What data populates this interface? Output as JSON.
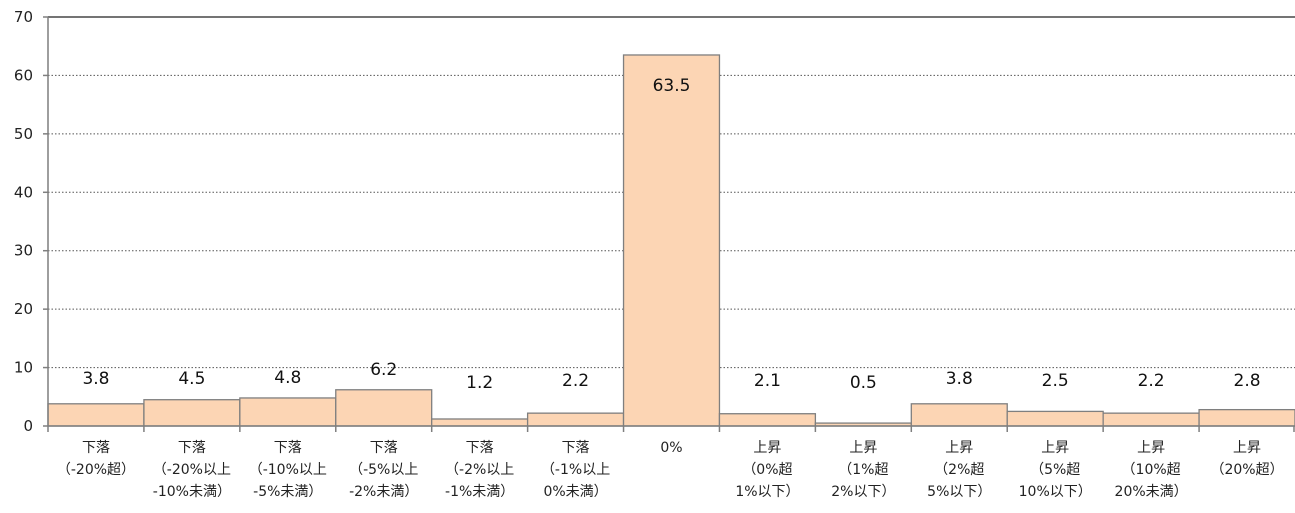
{
  "chart_data": {
    "type": "bar",
    "categories": [
      [
        "下落",
        "（-20%超）"
      ],
      [
        "下落",
        "（-20%以上",
        "-10%未満）"
      ],
      [
        "下落",
        "（-10%以上",
        "-5%未満）"
      ],
      [
        "下落",
        "（-5%以上",
        "-2%未満）"
      ],
      [
        "下落",
        "（-2%以上",
        "-1%未満）"
      ],
      [
        "下落",
        "（-1%以上",
        "0%未満）"
      ],
      [
        "0%"
      ],
      [
        "上昇",
        "（0%超",
        "1%以下）"
      ],
      [
        "上昇",
        "（1%超",
        "2%以下）"
      ],
      [
        "上昇",
        "（2%超",
        "5%以下）"
      ],
      [
        "上昇",
        "（5%超",
        "10%以下）"
      ],
      [
        "上昇",
        "（10%超",
        "20%未満）"
      ],
      [
        "上昇",
        "（20%超）"
      ]
    ],
    "values": [
      3.8,
      4.5,
      4.8,
      6.2,
      1.2,
      2.2,
      63.5,
      2.1,
      0.5,
      3.8,
      2.5,
      2.2,
      2.8
    ],
    "value_labels": [
      "3.8",
      "4.5",
      "4.8",
      "6.2",
      "1.2",
      "2.2",
      "63.5",
      "2.1",
      "0.5",
      "3.8",
      "2.5",
      "2.2",
      "2.8"
    ],
    "yticks": [
      "0",
      "10",
      "20",
      "30",
      "40",
      "50",
      "60",
      "70"
    ],
    "ylim": [
      0,
      70
    ],
    "grid": true,
    "bar_color": "#fcd5b4",
    "bar_edge_color": "#7f7f7f"
  }
}
